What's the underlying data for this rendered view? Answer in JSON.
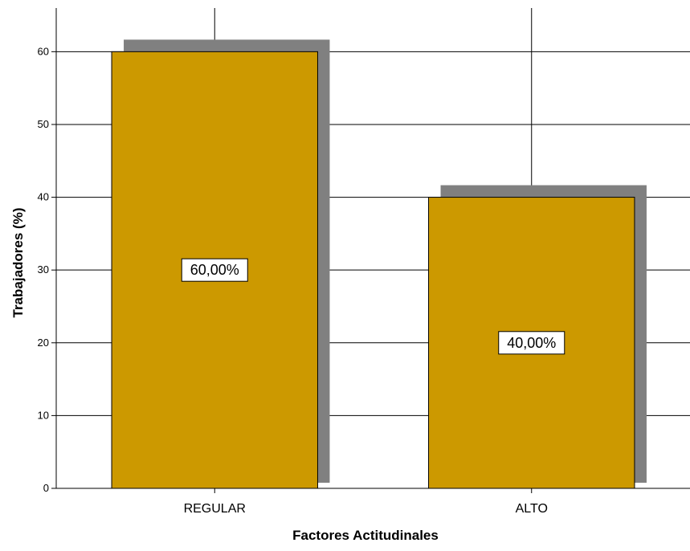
{
  "chart_data": {
    "type": "bar",
    "categories": [
      "REGULAR",
      "ALTO"
    ],
    "values": [
      60,
      40
    ],
    "data_labels": [
      "60,00%",
      "40,00%"
    ],
    "xlabel": "Factores Actitudinales",
    "ylabel": "Trabajadores (%)",
    "ylim": [
      0,
      66
    ],
    "yticks": [
      0,
      10,
      20,
      30,
      40,
      50,
      60
    ],
    "grid": true,
    "bar_color": "#CC9900",
    "shadow_color": "#808080"
  }
}
